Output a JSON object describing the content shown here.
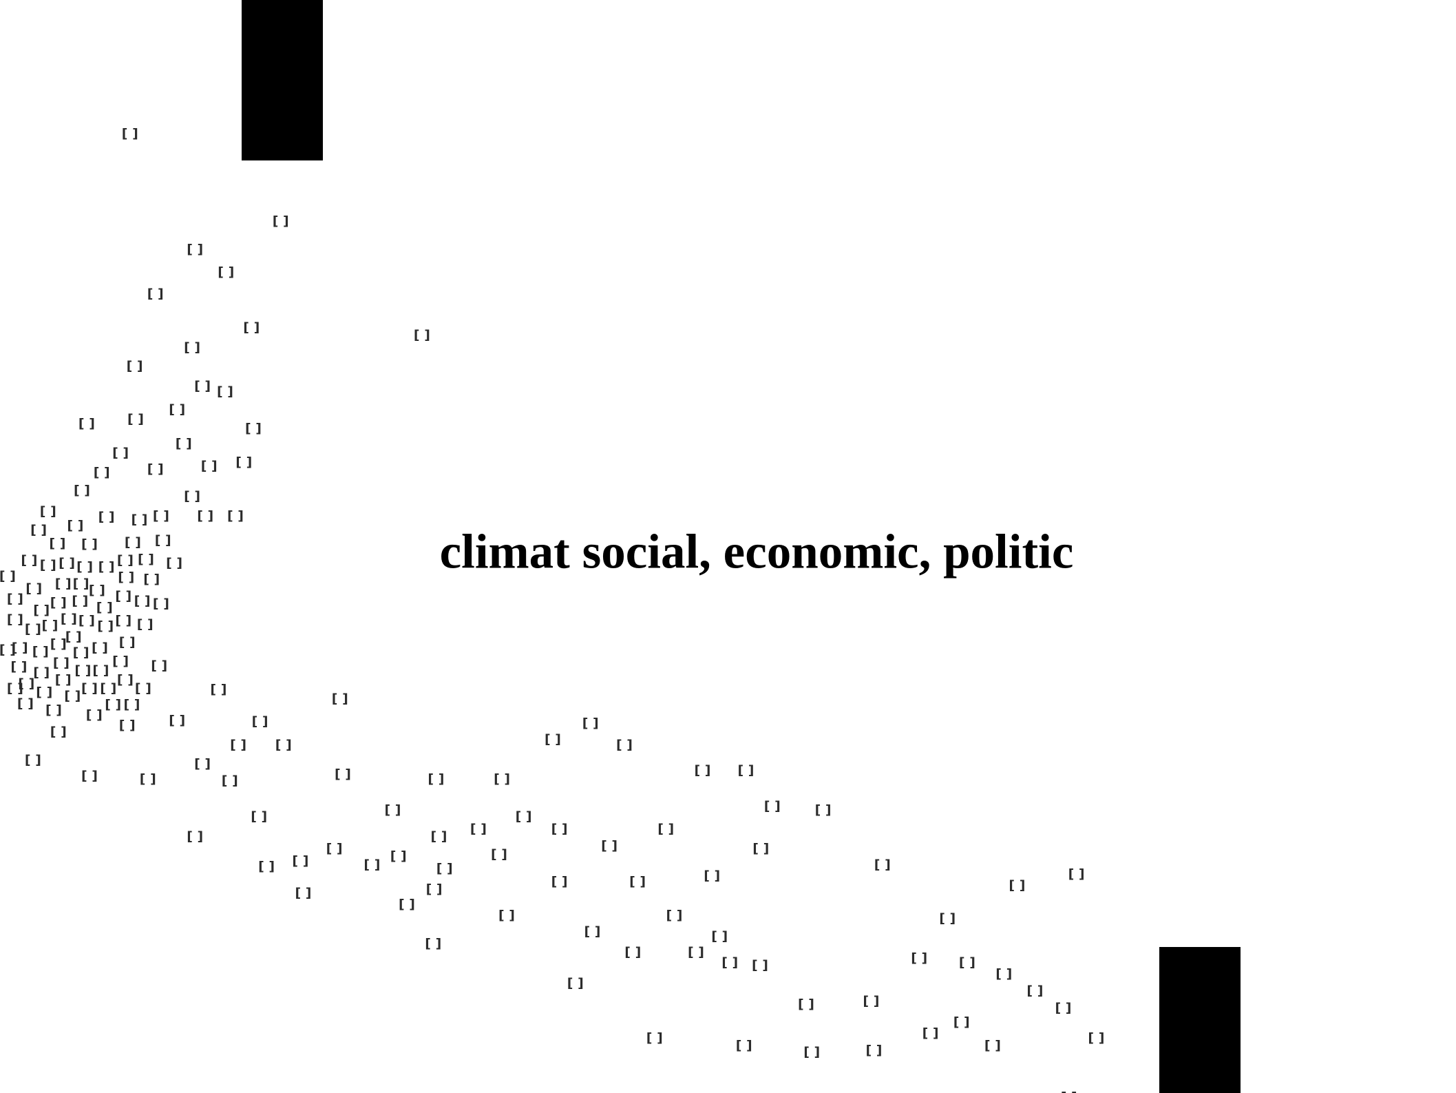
{
  "slide": {
    "title": "climat social, economic, politic",
    "marker": "[ ]"
  }
}
